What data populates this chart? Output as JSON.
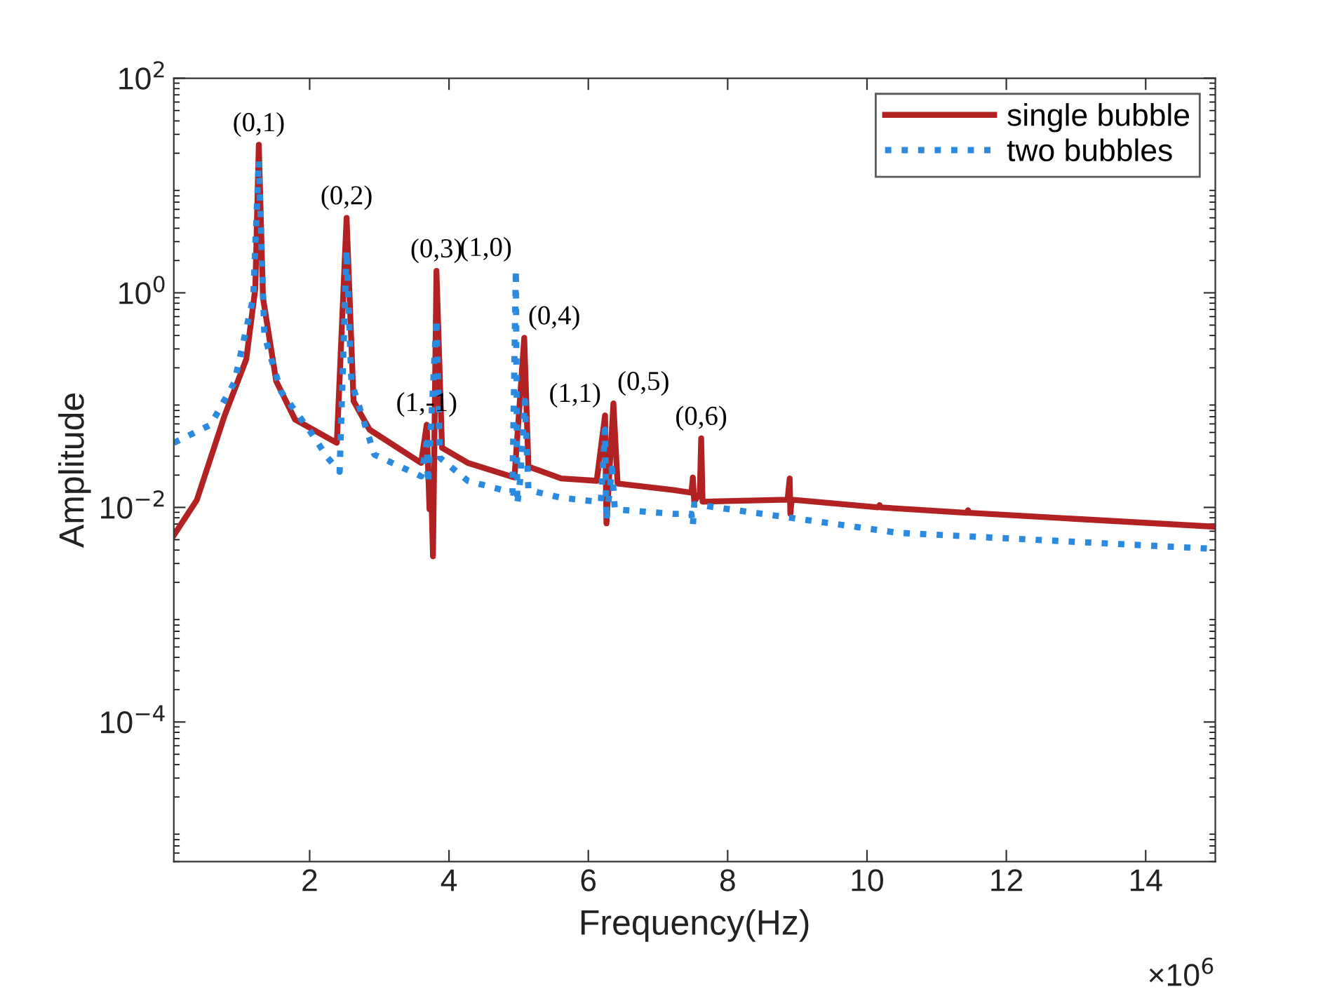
{
  "chart_data": {
    "type": "line",
    "xlabel": "Frequency(Hz)",
    "ylabel": "Amplitude",
    "log": "y",
    "grid": false,
    "legend": "top right",
    "marker": "none",
    "xlim": [
      0.05,
      15
    ],
    "xticks": [
      2,
      4,
      6,
      8,
      10,
      12,
      14
    ],
    "ylim": [
      5e-06,
      100
    ],
    "yticks": [
      {
        "value": 0.0001,
        "label": "10$^{−4}$"
      },
      {
        "value": 0.01,
        "label": "10$^{−2}$"
      },
      {
        "value": 1,
        "label": "10$^{0}$"
      },
      {
        "value": 100,
        "label": "10$^{2}$"
      }
    ],
    "series": [
      {
        "name": "single bubble",
        "color": "#b22222",
        "line_style": "solid",
        "x": [
          0.05,
          0.38,
          0.78,
          1.09,
          1.22,
          1.27,
          1.33,
          1.52,
          1.79,
          2.33,
          2.39,
          2.53,
          2.63,
          2.86,
          3.6,
          3.68,
          3.72,
          3.74,
          3.77,
          3.82,
          3.9,
          4.27,
          4.94,
          5.08,
          5.14,
          5.61,
          6.12,
          6.24,
          6.26,
          6.3,
          6.36,
          6.42,
          7.22,
          7.48,
          7.5,
          7.52,
          7.6,
          7.62,
          7.64,
          8.86,
          8.89,
          8.9,
          8.92,
          10.16,
          10.18,
          10.2,
          11.43,
          11.45,
          11.47,
          15
        ],
        "values": [
          0.0055,
          0.0117,
          0.072,
          0.24,
          1.1,
          24,
          0.9,
          0.15,
          0.066,
          0.042,
          0.04,
          5.0,
          0.098,
          0.053,
          0.026,
          0.059,
          0.0096,
          0.02,
          0.0035,
          1.6,
          0.036,
          0.026,
          0.019,
          0.38,
          0.024,
          0.0186,
          0.0177,
          0.072,
          0.0071,
          0.02,
          0.093,
          0.0167,
          0.0145,
          0.0137,
          0.019,
          0.0113,
          0.0135,
          0.044,
          0.0113,
          0.0118,
          0.0186,
          0.0087,
          0.0118,
          0.01,
          0.0105,
          0.01,
          0.0089,
          0.0094,
          0.0089,
          0.0066
        ]
      },
      {
        "name": "two bubbles",
        "color": "#2a8ae0",
        "line_style": "dotted",
        "x": [
          0.05,
          0.58,
          0.92,
          1.19,
          1.27,
          1.35,
          1.59,
          1.99,
          2.26,
          2.43,
          2.53,
          2.6,
          2.93,
          3.6,
          3.68,
          3.7,
          3.82,
          3.87,
          4.27,
          4.91,
          4.96,
          4.98,
          5.02,
          5.09,
          5.14,
          5.61,
          6.18,
          6.24,
          6.26,
          6.34,
          6.38,
          7.22,
          7.48,
          7.5,
          7.52,
          10.44,
          15
        ],
        "values": [
          0.04,
          0.059,
          0.147,
          0.9,
          17,
          0.4,
          0.12,
          0.053,
          0.029,
          0.0215,
          2.5,
          0.147,
          0.031,
          0.0195,
          0.04,
          0.0167,
          0.57,
          0.029,
          0.0177,
          0.0137,
          1.65,
          0.0107,
          0.0177,
          0.098,
          0.0145,
          0.0123,
          0.0112,
          0.053,
          0.0075,
          0.023,
          0.0096,
          0.0087,
          0.0087,
          0.0067,
          0.0107,
          0.0058,
          0.0041
        ]
      }
    ],
    "annotations": [
      {
        "text": "(0,1)",
        "x": 1.27,
        "y": 24
      },
      {
        "text": "(0,2)",
        "x": 2.53,
        "y": 5.0
      },
      {
        "text": "(0,3)",
        "x": 3.82,
        "y": 1.6
      },
      {
        "text": "(1,0)",
        "x": 4.96,
        "y": 1.65
      },
      {
        "text": "(0,4)",
        "x": 5.08,
        "y": 0.38
      },
      {
        "text": "(1,-1)",
        "x": 3.68,
        "y": 0.059
      },
      {
        "text": "(1,1)",
        "x": 6.24,
        "y": 0.072
      },
      {
        "text": "(0,5)",
        "x": 6.36,
        "y": 0.093
      },
      {
        "text": "(0,6)",
        "x": 7.62,
        "y": 0.044
      },
      "×10$^{6}$"
    ]
  }
}
